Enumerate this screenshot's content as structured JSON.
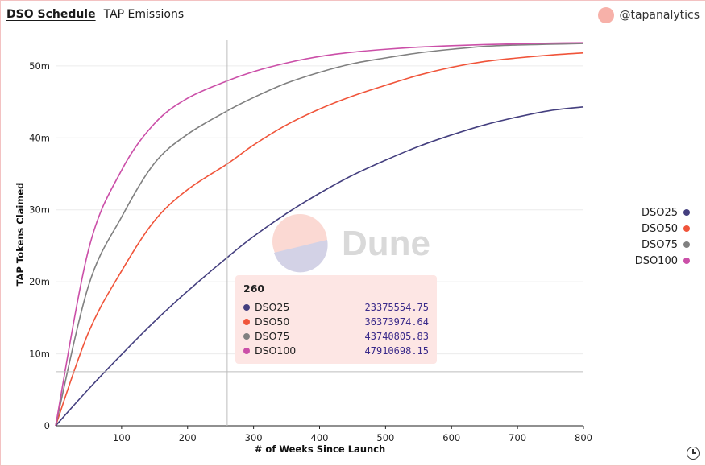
{
  "tabs": [
    {
      "label": "DSO Schedule",
      "active": true
    },
    {
      "label": "TAP Emissions",
      "active": false
    }
  ],
  "author": {
    "handle": "@tapanalytics",
    "avatar_color": "#f7b1a9"
  },
  "watermark": "Dune",
  "chart_data": {
    "type": "line",
    "title": "",
    "xlabel": "# of Weeks Since Launch",
    "ylabel": "TAP Tokens Claimed",
    "xlim": [
      0,
      800
    ],
    "ylim": [
      0,
      53000000
    ],
    "x_ticks": [
      100,
      200,
      300,
      400,
      500,
      600,
      700,
      800
    ],
    "y_ticks": [
      {
        "value": 0,
        "label": "0"
      },
      {
        "value": 10000000,
        "label": "10m"
      },
      {
        "value": 20000000,
        "label": "20m"
      },
      {
        "value": 30000000,
        "label": "30m"
      },
      {
        "value": 40000000,
        "label": "40m"
      },
      {
        "value": 50000000,
        "label": "50m"
      }
    ],
    "x": [
      0,
      50,
      100,
      150,
      200,
      260,
      300,
      350,
      400,
      450,
      500,
      550,
      600,
      650,
      700,
      750,
      800
    ],
    "series": [
      {
        "name": "DSO25",
        "color": "#443f7f",
        "values": [
          0,
          5100000,
          9900000,
          14500000,
          18700000,
          23375554.75,
          26300000,
          29500000,
          32300000,
          34800000,
          36900000,
          38800000,
          40400000,
          41800000,
          42900000,
          43800000,
          44300000
        ]
      },
      {
        "name": "DSO50",
        "color": "#f0543a",
        "values": [
          0,
          13000000,
          21500000,
          28500000,
          32800000,
          36373974.64,
          39000000,
          41800000,
          44000000,
          45800000,
          47300000,
          48700000,
          49800000,
          50600000,
          51100000,
          51500000,
          51800000
        ]
      },
      {
        "name": "DSO75",
        "color": "#808080",
        "values": [
          0,
          19500000,
          29000000,
          36500000,
          40500000,
          43740805.83,
          45600000,
          47600000,
          49100000,
          50300000,
          51100000,
          51800000,
          52300000,
          52700000,
          52900000,
          53000000,
          53100000
        ]
      },
      {
        "name": "DSO100",
        "color": "#cb4fa8",
        "values": [
          0,
          24500000,
          35500000,
          42000000,
          45500000,
          47910698.15,
          49200000,
          50400000,
          51300000,
          51900000,
          52300000,
          52600000,
          52800000,
          52950000,
          53050000,
          53150000,
          53200000
        ]
      }
    ],
    "legend_position": "right",
    "crosshair": {
      "x": 260,
      "y": 7500000
    }
  },
  "tooltip": {
    "title": "260",
    "rows": [
      {
        "name": "DSO25",
        "value": "23375554.75",
        "color": "#443f7f"
      },
      {
        "name": "DSO50",
        "value": "36373974.64",
        "color": "#f0543a"
      },
      {
        "name": "DSO75",
        "value": "43740805.83",
        "color": "#808080"
      },
      {
        "name": "DSO100",
        "value": "47910698.15",
        "color": "#cb4fa8"
      }
    ]
  }
}
